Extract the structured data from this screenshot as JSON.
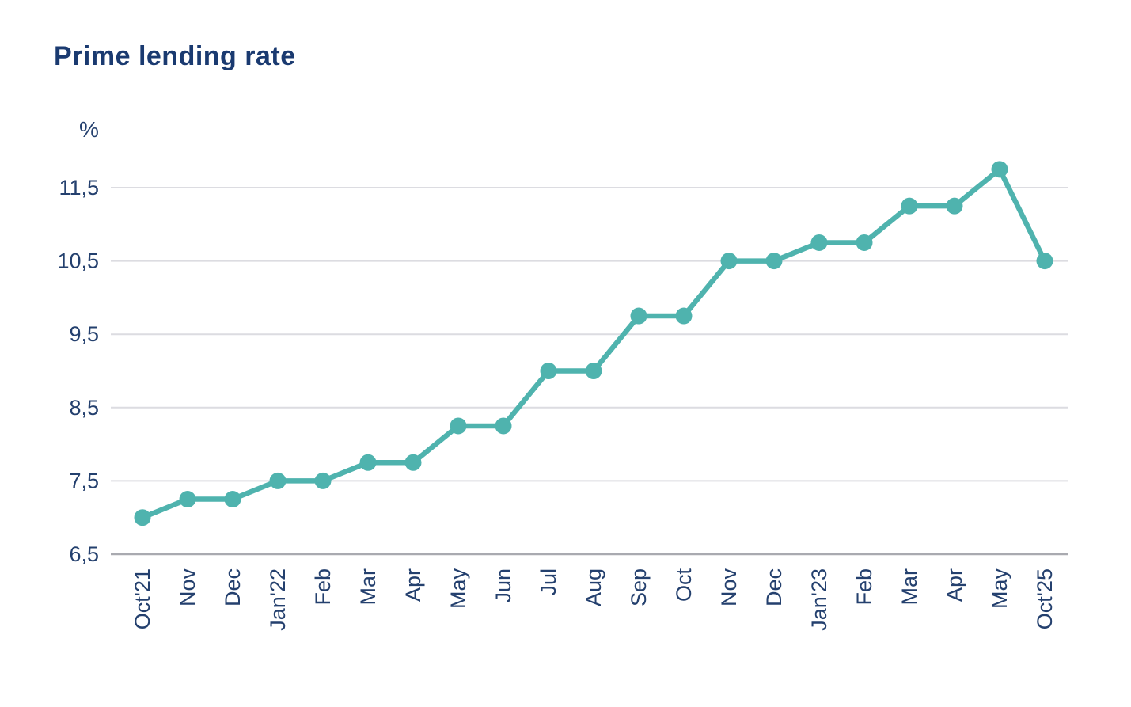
{
  "header": {
    "title": "Prime lending rate"
  },
  "chart_data": {
    "type": "line",
    "title": "Prime lending rate",
    "unit_label": "%",
    "xlabel": "",
    "ylabel": "%",
    "categories": [
      "Oct'21",
      "Nov",
      "Dec",
      "Jan'22",
      "Feb",
      "Mar",
      "Apr",
      "May",
      "Jun",
      "Jul",
      "Aug",
      "Sep",
      "Oct",
      "Nov",
      "Dec",
      "Jan'23",
      "Feb",
      "Mar",
      "Apr",
      "May",
      "Oct'25"
    ],
    "series": [
      {
        "name": "Prime lending rate",
        "values": [
          7.0,
          7.25,
          7.25,
          7.5,
          7.5,
          7.75,
          7.75,
          8.25,
          8.25,
          9.0,
          9.0,
          9.75,
          9.75,
          10.5,
          10.5,
          10.75,
          10.75,
          11.25,
          11.25,
          11.75,
          10.5
        ]
      }
    ],
    "y_ticks": [
      {
        "label": "11,5",
        "value": 11.5
      },
      {
        "label": "10,5",
        "value": 10.5
      },
      {
        "label": "9,5",
        "value": 9.5
      },
      {
        "label": "8,5",
        "value": 8.5
      },
      {
        "label": "7,5",
        "value": 7.5
      },
      {
        "label": "6,5",
        "value": 6.5
      }
    ],
    "ylim": [
      6.5,
      11.75
    ],
    "grid": true,
    "legend": "none",
    "decimal_separator": ",",
    "colors": {
      "line": "#4fb3ae",
      "marker": "#4fb3ae",
      "grid": "#dcdce1",
      "axis_baseline": "#a9aab0",
      "title": "#1a3a70",
      "tick_label": "#24406e",
      "background": "#ffffff"
    }
  }
}
